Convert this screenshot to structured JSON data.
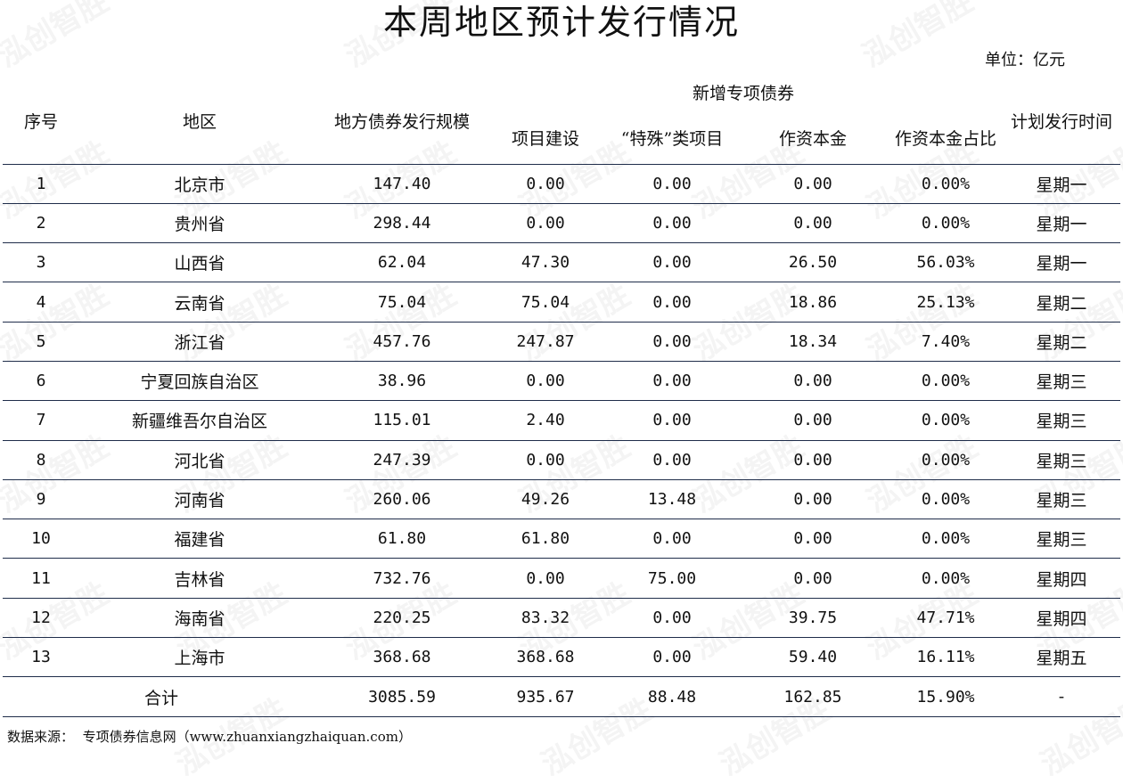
{
  "title": "本周地区预计发行情况",
  "unit_label": "单位：亿元",
  "watermark": "泓创智胜",
  "headers": {
    "index": "序号",
    "region": "地区",
    "scale": "地方债券发行规模",
    "new_special_group": "新增专项债券",
    "project": "项目建设",
    "special_category": "“特殊”类项目",
    "capital": "作资本金",
    "capital_ratio": "作资本金占比",
    "plan_time": "计划发行时间"
  },
  "rows": [
    {
      "index": "1",
      "region": "北京市",
      "scale": "147.40",
      "project": "0.00",
      "special": "0.00",
      "capital": "0.00",
      "ratio": "0.00%",
      "time": "星期一"
    },
    {
      "index": "2",
      "region": "贵州省",
      "scale": "298.44",
      "project": "0.00",
      "special": "0.00",
      "capital": "0.00",
      "ratio": "0.00%",
      "time": "星期一"
    },
    {
      "index": "3",
      "region": "山西省",
      "scale": "62.04",
      "project": "47.30",
      "special": "0.00",
      "capital": "26.50",
      "ratio": "56.03%",
      "time": "星期一"
    },
    {
      "index": "4",
      "region": "云南省",
      "scale": "75.04",
      "project": "75.04",
      "special": "0.00",
      "capital": "18.86",
      "ratio": "25.13%",
      "time": "星期二"
    },
    {
      "index": "5",
      "region": "浙江省",
      "scale": "457.76",
      "project": "247.87",
      "special": "0.00",
      "capital": "18.34",
      "ratio": "7.40%",
      "time": "星期二"
    },
    {
      "index": "6",
      "region": "宁夏回族自治区",
      "scale": "38.96",
      "project": "0.00",
      "special": "0.00",
      "capital": "0.00",
      "ratio": "0.00%",
      "time": "星期三"
    },
    {
      "index": "7",
      "region": "新疆维吾尔自治区",
      "scale": "115.01",
      "project": "2.40",
      "special": "0.00",
      "capital": "0.00",
      "ratio": "0.00%",
      "time": "星期三"
    },
    {
      "index": "8",
      "region": "河北省",
      "scale": "247.39",
      "project": "0.00",
      "special": "0.00",
      "capital": "0.00",
      "ratio": "0.00%",
      "time": "星期三"
    },
    {
      "index": "9",
      "region": "河南省",
      "scale": "260.06",
      "project": "49.26",
      "special": "13.48",
      "capital": "0.00",
      "ratio": "0.00%",
      "time": "星期三"
    },
    {
      "index": "10",
      "region": "福建省",
      "scale": "61.80",
      "project": "61.80",
      "special": "0.00",
      "capital": "0.00",
      "ratio": "0.00%",
      "time": "星期三"
    },
    {
      "index": "11",
      "region": "吉林省",
      "scale": "732.76",
      "project": "0.00",
      "special": "75.00",
      "capital": "0.00",
      "ratio": "0.00%",
      "time": "星期四"
    },
    {
      "index": "12",
      "region": "海南省",
      "scale": "220.25",
      "project": "83.32",
      "special": "0.00",
      "capital": "39.75",
      "ratio": "47.71%",
      "time": "星期四"
    },
    {
      "index": "13",
      "region": "上海市",
      "scale": "368.68",
      "project": "368.68",
      "special": "0.00",
      "capital": "59.40",
      "ratio": "16.11%",
      "time": "星期五"
    }
  ],
  "total": {
    "label": "合计",
    "scale": "3085.59",
    "project": "935.67",
    "special": "88.48",
    "capital": "162.85",
    "ratio": "15.90%",
    "time": "-"
  },
  "source_label": "数据来源：",
  "source_text": "专项债券信息网（www.zhuanxiangzhaiquan.com）"
}
